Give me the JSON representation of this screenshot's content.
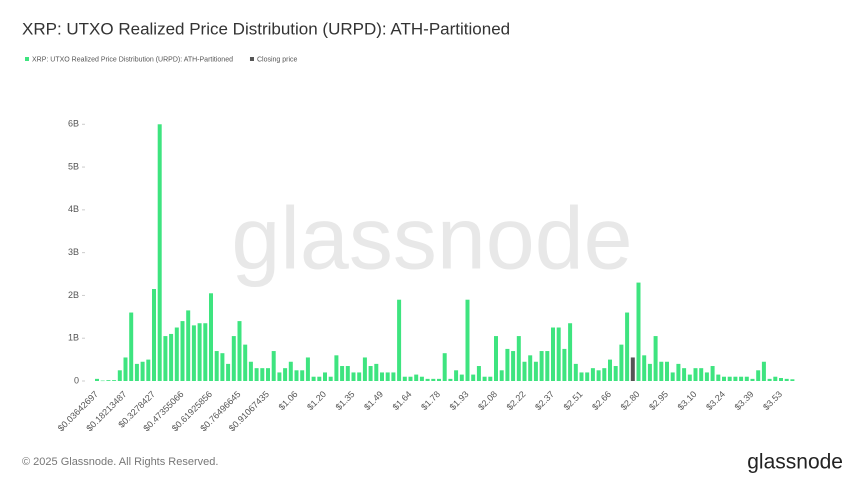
{
  "chart_data": {
    "type": "bar",
    "title": "XRP: UTXO Realized Price Distribution (URPD): ATH-Partitioned",
    "watermark": "glassnode",
    "footer": "© 2025 Glassnode. All Rights Reserved.",
    "logo": "glassnode",
    "legend": "top-left",
    "grid": false,
    "ylim": [
      0,
      6.1
    ],
    "yticks": [
      0,
      {
        "value": 1,
        "label": "1B"
      },
      {
        "value": 2,
        "label": "2B"
      },
      {
        "value": 3,
        "label": "3B"
      },
      {
        "value": 4,
        "label": "4B"
      },
      {
        "value": 5,
        "label": "5B"
      },
      {
        "value": 6,
        "label": "6B"
      }
    ],
    "categories": [
      "$0.03642697",
      null,
      null,
      null,
      null,
      "$0.18213487",
      null,
      null,
      null,
      null,
      "$0.3278427",
      null,
      null,
      null,
      null,
      "$0.47355066",
      null,
      null,
      null,
      null,
      "$0.61925856",
      null,
      null,
      null,
      null,
      "$0.76496645",
      null,
      null,
      null,
      null,
      "$0.91067435",
      null,
      null,
      null,
      null,
      "$1.06",
      null,
      null,
      null,
      null,
      "$1.20",
      null,
      null,
      null,
      null,
      "$1.35",
      null,
      null,
      null,
      null,
      "$1.49",
      null,
      null,
      null,
      null,
      "$1.64",
      null,
      null,
      null,
      null,
      "$1.78",
      null,
      null,
      null,
      null,
      "$1.93",
      null,
      null,
      null,
      null,
      "$2.08",
      null,
      null,
      null,
      null,
      "$2.22",
      null,
      null,
      null,
      null,
      "$2.37",
      null,
      null,
      null,
      null,
      "$2.51",
      null,
      null,
      null,
      null,
      "$2.66",
      null,
      null,
      null,
      null,
      "$2.80",
      null,
      null,
      null,
      null,
      "$2.95",
      null,
      null,
      null,
      null,
      "$3.10",
      null,
      null,
      null,
      null,
      "$3.24",
      null,
      null,
      null,
      null,
      "$3.39",
      null,
      null,
      null,
      null,
      "$3.53",
      null,
      null
    ],
    "series": [
      {
        "name": "XRP: UTXO Realized Price Distribution (URPD): ATH-Partitioned",
        "color": "#3ee47f",
        "values": [
          0.05,
          0.01,
          0.02,
          0.02,
          0.25,
          0.55,
          1.6,
          0.4,
          0.45,
          0.5,
          2.15,
          6.0,
          1.05,
          1.1,
          1.25,
          1.4,
          1.65,
          1.3,
          1.35,
          1.35,
          2.05,
          0.7,
          0.65,
          0.4,
          1.05,
          1.4,
          0.85,
          0.45,
          0.3,
          0.3,
          0.3,
          0.7,
          0.2,
          0.3,
          0.45,
          0.25,
          0.25,
          0.55,
          0.1,
          0.1,
          0.2,
          0.1,
          0.6,
          0.35,
          0.35,
          0.2,
          0.2,
          0.55,
          0.35,
          0.4,
          0.2,
          0.2,
          0.2,
          1.9,
          0.1,
          0.1,
          0.15,
          0.1,
          0.05,
          0.05,
          0.05,
          0.65,
          0.05,
          0.25,
          0.15,
          1.9,
          0.15,
          0.35,
          0.1,
          0.1,
          1.05,
          0.25,
          0.75,
          0.7,
          1.05,
          0.45,
          0.6,
          0.45,
          0.7,
          0.7,
          1.25,
          1.25,
          0.75,
          1.35,
          0.4,
          0.2,
          0.2,
          0.3,
          0.25,
          0.3,
          0.5,
          0.35,
          0.85,
          1.6,
          null,
          2.3,
          0.6,
          0.4,
          1.05,
          0.45,
          0.45,
          0.2,
          0.4,
          0.3,
          0.15,
          0.3,
          0.3,
          0.2,
          0.35,
          0.15,
          0.1,
          0.1,
          0.1,
          0.1,
          0.1,
          0.05,
          0.25,
          0.45,
          0.05,
          0.1,
          0.07,
          0.05,
          0.04
        ]
      },
      {
        "name": "Closing price",
        "color": "#555555",
        "values": [
          null,
          null,
          null,
          null,
          null,
          null,
          null,
          null,
          null,
          null,
          null,
          null,
          null,
          null,
          null,
          null,
          null,
          null,
          null,
          null,
          null,
          null,
          null,
          null,
          null,
          null,
          null,
          null,
          null,
          null,
          null,
          null,
          null,
          null,
          null,
          null,
          null,
          null,
          null,
          null,
          null,
          null,
          null,
          null,
          null,
          null,
          null,
          null,
          null,
          null,
          null,
          null,
          null,
          null,
          null,
          null,
          null,
          null,
          null,
          null,
          null,
          null,
          null,
          null,
          null,
          null,
          null,
          null,
          null,
          null,
          null,
          null,
          null,
          null,
          null,
          null,
          null,
          null,
          null,
          null,
          null,
          null,
          null,
          null,
          null,
          null,
          null,
          null,
          null,
          null,
          null,
          null,
          null,
          null,
          0.55,
          null,
          null,
          null,
          null,
          null,
          null,
          null,
          null,
          null,
          null,
          null,
          null,
          null,
          null,
          null,
          null,
          null,
          null,
          null,
          null,
          null,
          null,
          null,
          null,
          null,
          null,
          null,
          null
        ]
      }
    ]
  }
}
